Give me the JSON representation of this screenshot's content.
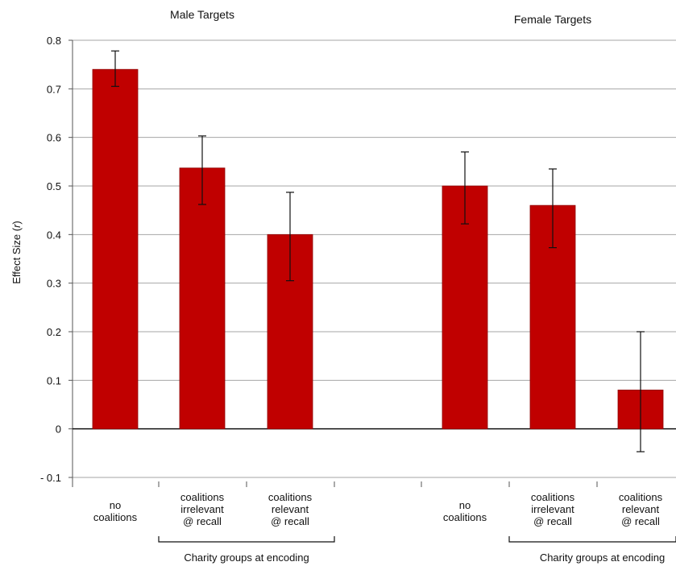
{
  "chart_data": {
    "type": "bar",
    "ylabel": "Effect Size (r)",
    "ylabel_parts": [
      "Effect Size ",
      "r"
    ],
    "ylim": [
      -0.1,
      0.8
    ],
    "yticks": [
      {
        "value": 0.8,
        "label": "0.8"
      },
      {
        "value": 0.7,
        "label": "0.7"
      },
      {
        "value": 0.6,
        "label": "0.6"
      },
      {
        "value": 0.5,
        "label": "0.5"
      },
      {
        "value": 0.4,
        "label": "0.4"
      },
      {
        "value": 0.3,
        "label": "0.3"
      },
      {
        "value": 0.2,
        "label": "0.2"
      },
      {
        "value": 0.1,
        "label": "0.1"
      },
      {
        "value": 0,
        "label": "0"
      },
      {
        "value": -0.1,
        "label": "- 0.1"
      }
    ],
    "grid": true,
    "bar_color": "#c00000",
    "groups": [
      {
        "title": "Male Targets",
        "bracket_label": "Charity groups at encoding",
        "bars": [
          {
            "category": [
              "no",
              "coalitions"
            ],
            "value": 0.74,
            "err_low": 0.705,
            "err_high": 0.778
          },
          {
            "category": [
              "coalitions",
              "irrelevant",
              "@ recall"
            ],
            "value": 0.537,
            "err_low": 0.462,
            "err_high": 0.603
          },
          {
            "category": [
              "coalitions",
              "relevant",
              "@ recall"
            ],
            "value": 0.4,
            "err_low": 0.305,
            "err_high": 0.487
          }
        ]
      },
      {
        "title": "Female Targets",
        "bracket_label": "Charity groups at encoding",
        "bars": [
          {
            "category": [
              "no",
              "coalitions"
            ],
            "value": 0.5,
            "err_low": 0.422,
            "err_high": 0.57
          },
          {
            "category": [
              "coalitions",
              "irrelevant",
              "@ recall"
            ],
            "value": 0.46,
            "err_low": 0.373,
            "err_high": 0.535
          },
          {
            "category": [
              "coalitions",
              "relevant",
              "@ recall"
            ],
            "value": 0.08,
            "err_low": -0.047,
            "err_high": 0.2
          }
        ]
      }
    ]
  }
}
